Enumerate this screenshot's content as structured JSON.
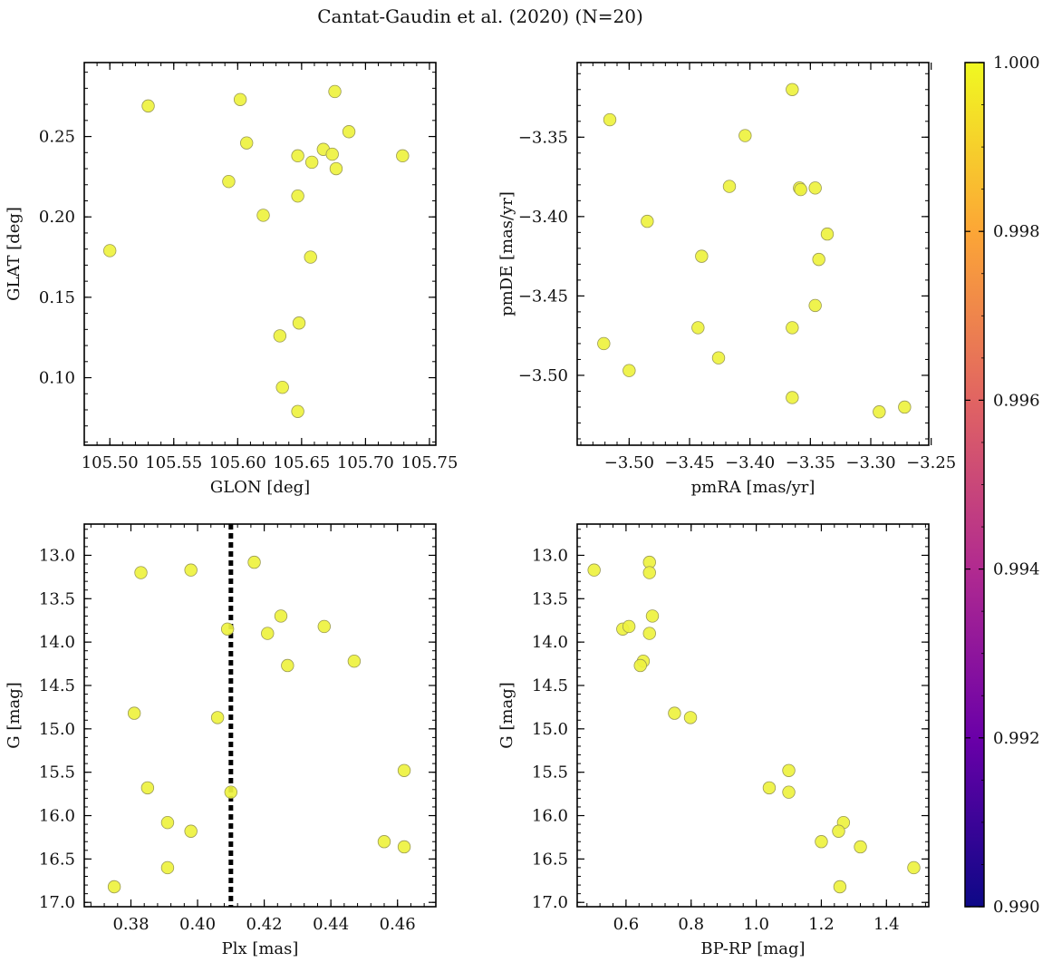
{
  "figure": {
    "title": "Cantat-Gaudin et al. (2020) (N=20)"
  },
  "chart_data": [
    {
      "type": "scatter",
      "xlabel": "GLON [deg]",
      "ylabel": "GLAT [deg]",
      "xlim": [
        105.48,
        105.755
      ],
      "ylim": [
        0.058,
        0.296
      ],
      "xticks": [
        105.5,
        105.55,
        105.6,
        105.65,
        105.7,
        105.75
      ],
      "xtick_labels": [
        "105.50",
        "105.55",
        "105.60",
        "105.65",
        "105.70",
        "105.75"
      ],
      "yticks": [
        0.1,
        0.15,
        0.2,
        0.25
      ],
      "ytick_labels": [
        "0.10",
        "0.15",
        "0.20",
        "0.25"
      ],
      "y_inverted": false,
      "x": [
        105.53,
        105.602,
        105.607,
        105.593,
        105.62,
        105.647,
        105.647,
        105.658,
        105.667,
        105.676,
        105.674,
        105.677,
        105.687,
        105.729,
        105.5,
        105.657,
        105.648,
        105.633,
        105.635,
        105.647
      ],
      "y": [
        0.269,
        0.273,
        0.246,
        0.222,
        0.201,
        0.238,
        0.213,
        0.234,
        0.242,
        0.278,
        0.239,
        0.23,
        0.253,
        0.238,
        0.179,
        0.175,
        0.134,
        0.126,
        0.094,
        0.079
      ],
      "colors": [
        1,
        1,
        1,
        1,
        1,
        1,
        1,
        1,
        1,
        1,
        1,
        1,
        1,
        1,
        1,
        1,
        1,
        1,
        1,
        1
      ]
    },
    {
      "type": "scatter",
      "xlabel": "pmRA [mas/yr]",
      "ylabel": "pmDE [mas/yr]",
      "xlim": [
        -3.543,
        -3.252
      ],
      "ylim": [
        -3.544,
        -3.303
      ],
      "xticks": [
        -3.5,
        -3.45,
        -3.4,
        -3.35,
        -3.3,
        -3.25
      ],
      "xtick_labels": [
        "−3.50",
        "−3.45",
        "−3.40",
        "−3.35",
        "−3.30",
        "−3.25"
      ],
      "yticks": [
        -3.5,
        -3.45,
        -3.4,
        -3.35
      ],
      "ytick_labels": [
        "−3.50",
        "−3.45",
        "−3.40",
        "−3.35"
      ],
      "y_inverted": false,
      "x": [
        -3.365,
        -3.516,
        -3.404,
        -3.417,
        -3.359,
        -3.358,
        -3.346,
        -3.485,
        -3.44,
        -3.336,
        -3.343,
        -3.346,
        -3.443,
        -3.365,
        -3.521,
        -3.426,
        -3.5,
        -3.365,
        -3.272,
        -3.293
      ],
      "y": [
        -3.32,
        -3.339,
        -3.349,
        -3.381,
        -3.382,
        -3.383,
        -3.382,
        -3.403,
        -3.425,
        -3.411,
        -3.427,
        -3.456,
        -3.47,
        -3.47,
        -3.48,
        -3.489,
        -3.497,
        -3.514,
        -3.52,
        -3.523
      ],
      "colors": [
        1,
        1,
        1,
        1,
        1,
        1,
        1,
        1,
        1,
        1,
        1,
        1,
        1,
        1,
        1,
        1,
        1,
        1,
        1,
        1
      ]
    },
    {
      "type": "scatter",
      "xlabel": "Plx [mas]",
      "ylabel": "G [mag]",
      "xlim": [
        0.366,
        0.4715
      ],
      "ylim": [
        17.05,
        12.64
      ],
      "xticks": [
        0.38,
        0.4,
        0.42,
        0.44,
        0.46
      ],
      "xtick_labels": [
        "0.38",
        "0.40",
        "0.42",
        "0.44",
        "0.46"
      ],
      "yticks": [
        13.0,
        13.5,
        14.0,
        14.5,
        15.0,
        15.5,
        16.0,
        16.5,
        17.0
      ],
      "ytick_labels": [
        "13.0",
        "13.5",
        "14.0",
        "14.5",
        "15.0",
        "15.5",
        "16.0",
        "16.5",
        "17.0"
      ],
      "y_inverted": true,
      "vline": 0.41,
      "x": [
        0.417,
        0.398,
        0.383,
        0.425,
        0.438,
        0.409,
        0.421,
        0.447,
        0.427,
        0.381,
        0.406,
        0.462,
        0.385,
        0.41,
        0.391,
        0.398,
        0.456,
        0.462,
        0.391,
        0.375
      ],
      "y": [
        13.08,
        13.17,
        13.2,
        13.7,
        13.82,
        13.85,
        13.9,
        14.22,
        14.27,
        14.82,
        14.87,
        15.48,
        15.68,
        15.73,
        16.08,
        16.18,
        16.3,
        16.36,
        16.6,
        16.82
      ],
      "colors": [
        1,
        1,
        1,
        1,
        1,
        1,
        1,
        1,
        1,
        1,
        1,
        1,
        1,
        1,
        1,
        1,
        1,
        1,
        1,
        1
      ]
    },
    {
      "type": "scatter",
      "xlabel": "BP-RP [mag]",
      "ylabel": "G [mag]",
      "xlim": [
        0.45,
        1.53
      ],
      "ylim": [
        17.05,
        12.64
      ],
      "xticks": [
        0.6,
        0.8,
        1.0,
        1.2,
        1.4
      ],
      "xtick_labels": [
        "0.6",
        "0.8",
        "1.0",
        "1.2",
        "1.4"
      ],
      "yticks": [
        13.0,
        13.5,
        14.0,
        14.5,
        15.0,
        15.5,
        16.0,
        16.5,
        17.0
      ],
      "ytick_labels": [
        "13.0",
        "13.5",
        "14.0",
        "14.5",
        "15.0",
        "15.5",
        "16.0",
        "16.5",
        "17.0"
      ],
      "y_inverted": true,
      "x": [
        0.672,
        0.502,
        0.672,
        0.681,
        0.59,
        0.609,
        0.672,
        0.653,
        0.644,
        0.749,
        0.798,
        1.1,
        1.04,
        1.1,
        1.268,
        1.253,
        1.2,
        1.32,
        1.484,
        1.257
      ],
      "y": [
        13.08,
        13.17,
        13.2,
        13.7,
        13.85,
        13.82,
        13.9,
        14.22,
        14.27,
        14.82,
        14.87,
        15.48,
        15.68,
        15.73,
        16.08,
        16.18,
        16.3,
        16.36,
        16.6,
        16.82
      ],
      "colors": [
        1,
        1,
        1,
        1,
        1,
        1,
        1,
        1,
        1,
        1,
        1,
        1,
        1,
        1,
        1,
        1,
        1,
        1,
        1,
        1
      ]
    }
  ],
  "colorbar": {
    "min": 0.99,
    "max": 1.0,
    "ticks": [
      0.99,
      0.992,
      0.994,
      0.996,
      0.998,
      1.0
    ],
    "tick_labels": [
      "0.990",
      "0.992",
      "0.994",
      "0.996",
      "0.998",
      "1.000"
    ],
    "colormap": "plasma",
    "stops": [
      "#0d0887",
      "#6a00a8",
      "#b12a90",
      "#e16462",
      "#fca636",
      "#f0f921"
    ]
  },
  "style": {
    "marker_fill": "#eef23f",
    "marker_edge": "#9a9a55",
    "vline_color": "#000000"
  }
}
